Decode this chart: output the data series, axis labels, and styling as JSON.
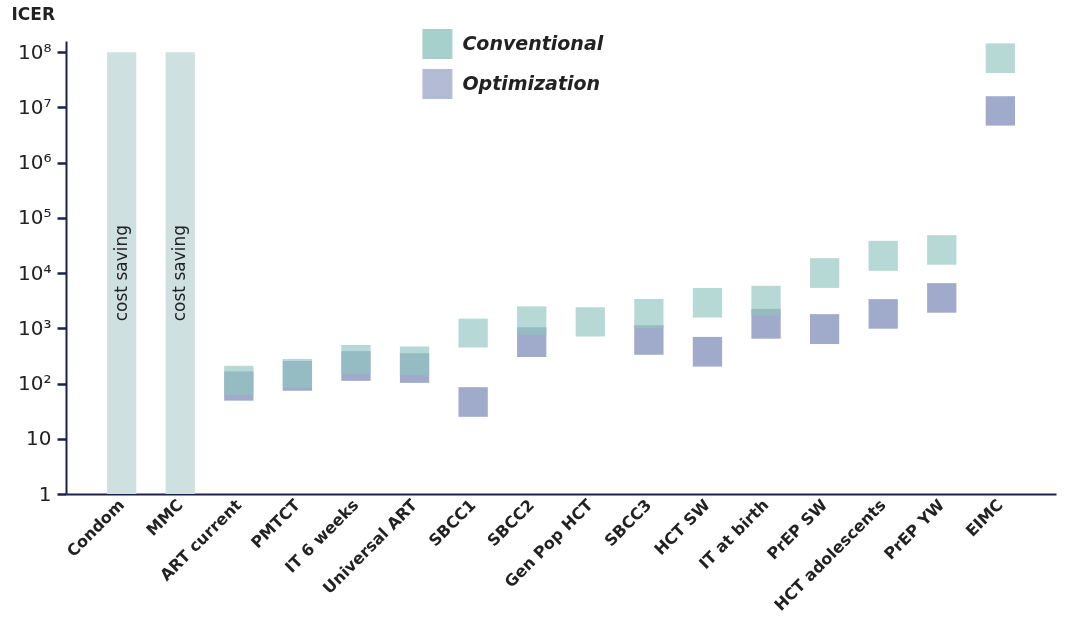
{
  "chart_data": {
    "type": "bar",
    "ylabel": "ICER",
    "categories": [
      "Condom",
      "MMC",
      "ART current",
      "PMTCT",
      "IT 6 weeks",
      "Universal ART",
      "SBCC1",
      "SBCC2",
      "Gen Pop HCT",
      "SBCC3",
      "HCT SW",
      "IT at birth",
      "PrEP SW",
      "HCT adolescents",
      "PrEP YW",
      "EIMC"
    ],
    "series": [
      {
        "color": "#cfe0e0",
        "base": [
          1,
          1,
          null,
          null,
          null,
          null,
          null,
          null,
          null,
          null,
          null,
          null,
          null,
          null,
          null,
          null
        ],
        "values": [
          99999999,
          99999999,
          null,
          null,
          null,
          null,
          null,
          null,
          null,
          null,
          null,
          null,
          null,
          null,
          null,
          null
        ]
      },
      {
        "name": "Conventional",
        "color": "#8fc4bf",
        "base": [
          null,
          null,
          62,
          84,
          150,
          140,
          450,
          760,
          710,
          1000,
          1570,
          1700,
          5400,
          11000,
          14200,
          42000000
        ],
        "values": [
          null,
          null,
          148,
          196,
          350,
          330,
          1050,
          1740,
          1690,
          2400,
          3830,
          4200,
          13300,
          27500,
          34500,
          103000000
        ]
      },
      {
        "name": "Optimization",
        "color": "#a0aaca",
        "base": [
          null,
          null,
          49,
          74,
          112,
          103,
          25,
          303,
          null,
          332,
          203,
          650,
          520,
          985,
          1920,
          4700000
        ],
        "values": [
          null,
          null,
          117,
          181,
          275,
          252,
          61,
          742,
          null,
          808,
          497,
          1600,
          1290,
          2395,
          4670,
          11300000
        ]
      }
    ],
    "log": true,
    "ylim": [
      1,
      160000000
    ],
    "yticks": [
      1,
      10,
      {
        "value": 100,
        "label": "10²"
      },
      {
        "value": 1000,
        "label": "10³"
      },
      {
        "value": 10000,
        "label": "10⁴"
      },
      {
        "value": 100000,
        "label": "10⁵"
      },
      {
        "value": 1000000,
        "label": "10⁶"
      },
      {
        "value": 10000000,
        "label": "10⁷"
      },
      {
        "value": 100000000,
        "label": "10⁸"
      }
    ],
    "legend": "top",
    "annotations": [
      "cost saving",
      "cost saving"
    ]
  }
}
